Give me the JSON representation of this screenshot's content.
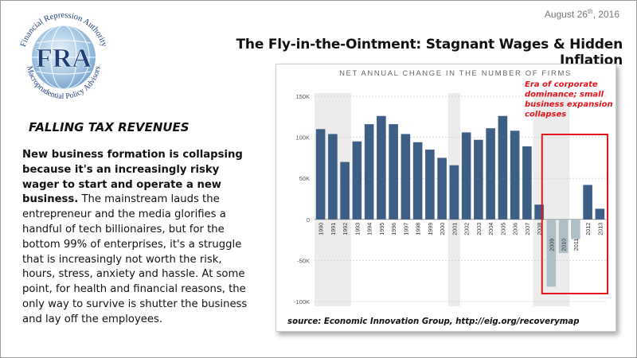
{
  "logo": {
    "acronym": "FRA",
    "ring_top": "Financial Repression Authority",
    "ring_bottom": "Macroprudential Policy Advisors",
    "colors": {
      "globe": "#9cc4e4",
      "ring": "#1c3f7a"
    }
  },
  "header": {
    "date_day": "August 26",
    "date_suffix": "th",
    "date_year": ", 2016",
    "title": "The Fly-in-the-Ointment: Stagnant Wages & Hidden Inflation"
  },
  "article": {
    "subtitle": "FALLING TAX REVENUES",
    "bold_lead": "New business formation is collapsing because it's an increasingly risky wager to start and operate a new business.",
    "body": " The mainstream lauds the entrepreneur and the media glorifies a handful of tech billionaires, but for the bottom 99% of enterprises, it's a struggle that is increasingly not worth the risk, hours, stress, anxiety and hassle. At some point, for health and financial reasons, the only way to survive is shutter the business and lay off the employees."
  },
  "chart_data": {
    "type": "bar",
    "title": "NET ANNUAL CHANGE IN THE NUMBER OF FIRMS",
    "categories": [
      "1990",
      "1991",
      "1992",
      "1993",
      "1994",
      "1995",
      "1996",
      "1997",
      "1998",
      "1999",
      "2000",
      "2001",
      "2002",
      "2003",
      "2004",
      "2005",
      "2006",
      "2007",
      "2008",
      "2009",
      "2010",
      "2011",
      "2012",
      "2013"
    ],
    "values": [
      110000,
      104000,
      70000,
      95000,
      116000,
      126000,
      116000,
      104000,
      94000,
      85000,
      75000,
      66000,
      106000,
      97000,
      111000,
      126000,
      108000,
      89000,
      18000,
      -82000,
      -41000,
      -24000,
      42000,
      13000
    ],
    "ylim": [
      -100000,
      150000
    ],
    "yticks": [
      150000,
      100000,
      50000,
      0,
      -50000,
      -100000
    ],
    "ytick_labels": [
      "150K",
      "100K",
      "50K",
      "0",
      "-50K",
      "-100K"
    ],
    "recession_shading": [
      [
        "1990",
        "1992"
      ],
      [
        "2001",
        "2001"
      ],
      [
        "2008",
        "2010"
      ]
    ],
    "label_inside_bar_categories": [
      "2009",
      "2010",
      "2011"
    ],
    "colors": {
      "positive": "#3d5f86",
      "negative": "#aebfc8",
      "shade": "#ececec",
      "highlight": "#e3141b"
    },
    "annotation": "Era of corporate dominance; small business expansion collapses",
    "annotation_lines": [
      "Era of corporate",
      "dominance; small",
      "business expansion",
      "collapses"
    ],
    "source": "source: Economic Innovation Group, http://eig.org/recoverymap"
  }
}
